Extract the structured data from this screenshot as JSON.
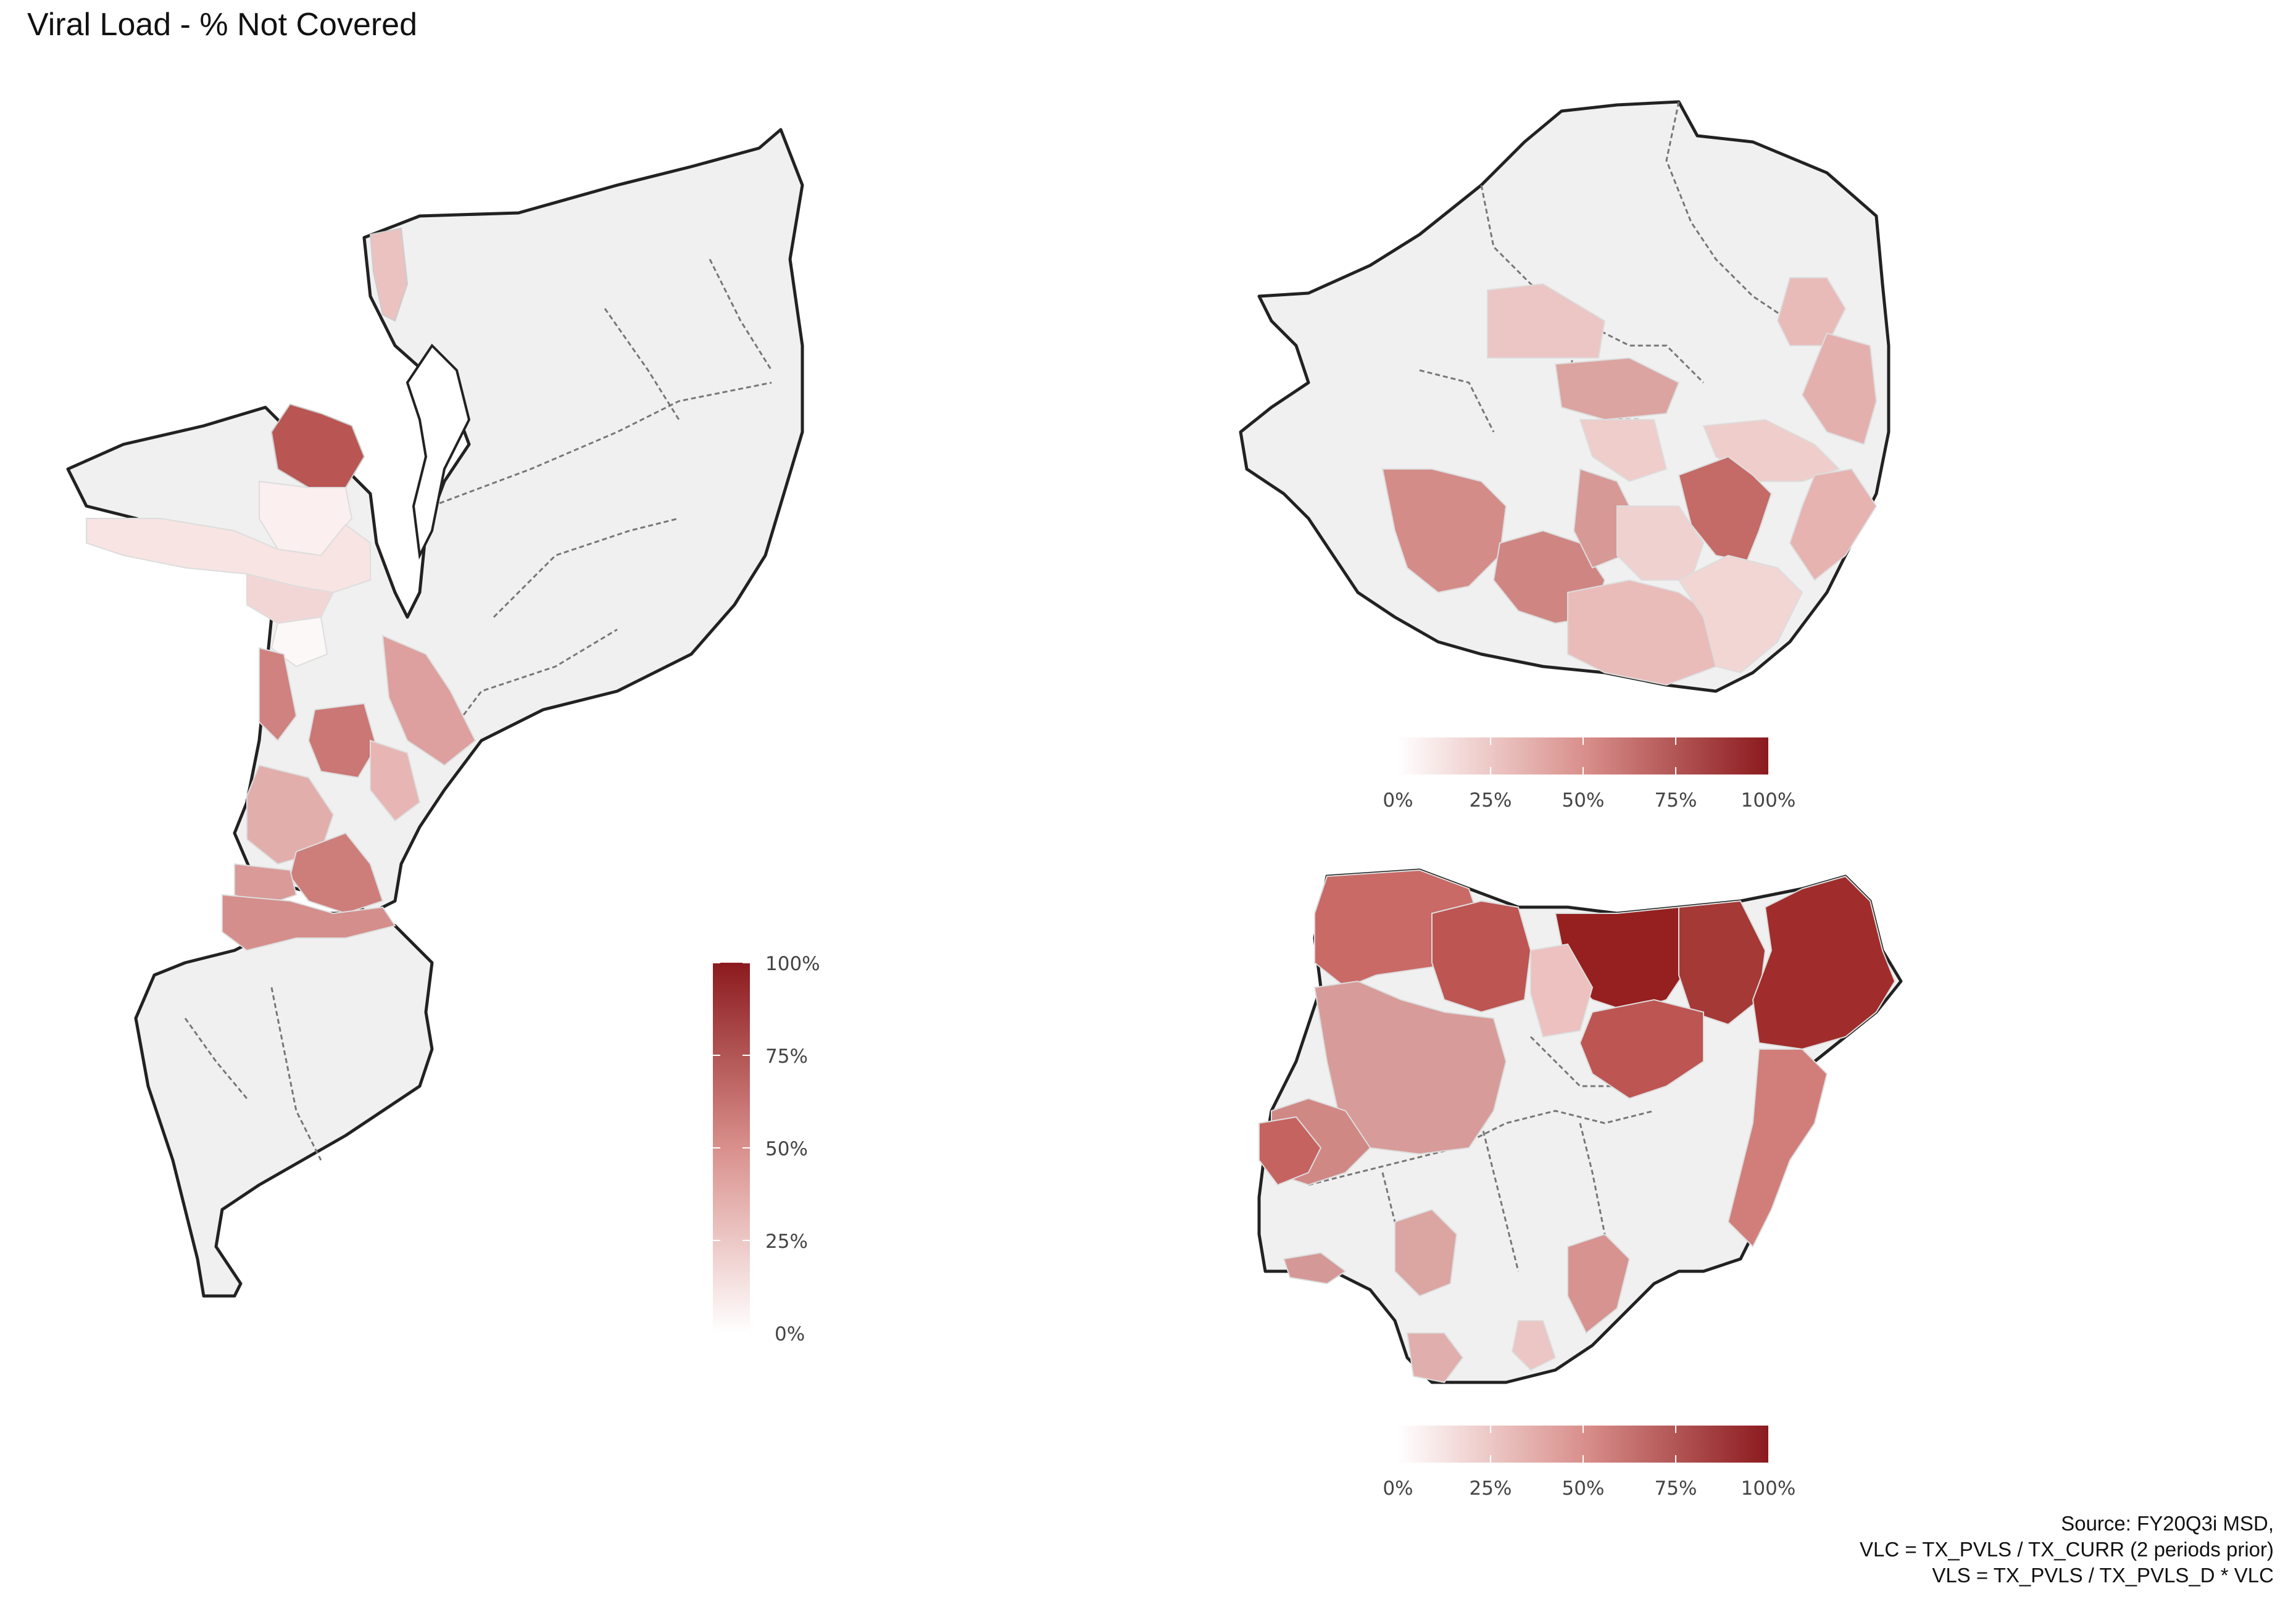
{
  "title": "Viral Load - % Not Covered",
  "colors": {
    "low": "#ffffff",
    "high": "#8b1a1e",
    "land": "#f0f0f0",
    "border": "#222222"
  },
  "legend": {
    "ticks": [
      "0%",
      "25%",
      "50%",
      "75%",
      "100%"
    ],
    "range": [
      0,
      100
    ]
  },
  "maps": [
    {
      "id": "mozambique",
      "regions": [
        {
          "name": "north-west-dark",
          "value": 70
        },
        {
          "name": "niassa-center",
          "value": 8
        },
        {
          "name": "niassa-south",
          "value": 18
        },
        {
          "name": "tete-band",
          "value": 12
        },
        {
          "name": "manica-north",
          "value": 5
        },
        {
          "name": "manica-strip",
          "value": 45
        },
        {
          "name": "sofala-mid",
          "value": 52
        },
        {
          "name": "sofala-east",
          "value": 38
        },
        {
          "name": "zambezia-east",
          "value": 28
        },
        {
          "name": "inhambane-a",
          "value": 30
        },
        {
          "name": "inhambane-b",
          "value": 48
        },
        {
          "name": "gaza-band",
          "value": 40
        },
        {
          "name": "gaza-south",
          "value": 45
        },
        {
          "name": "north-tip",
          "value": 22
        }
      ]
    },
    {
      "id": "zimbabwe",
      "regions": [
        {
          "name": "matabeleland-north-a",
          "value": 22
        },
        {
          "name": "midlands-a",
          "value": 38
        },
        {
          "name": "midlands-b",
          "value": 25
        },
        {
          "name": "harare-east",
          "value": 30
        },
        {
          "name": "mashonaland-east",
          "value": 25
        },
        {
          "name": "manicaland-a",
          "value": 35
        },
        {
          "name": "masvingo-dark",
          "value": 60
        },
        {
          "name": "matabeleland-south-a",
          "value": 45
        },
        {
          "name": "matabeleland-south-b",
          "value": 52
        },
        {
          "name": "gwanda-a",
          "value": 48
        },
        {
          "name": "gwanda-b",
          "value": 28
        },
        {
          "name": "masvingo-south",
          "value": 30
        },
        {
          "name": "chiredzi",
          "value": 20
        },
        {
          "name": "east-border",
          "value": 32
        }
      ]
    },
    {
      "id": "nigeria",
      "regions": [
        {
          "name": "sokoto",
          "value": 60
        },
        {
          "name": "zamfara",
          "value": 68
        },
        {
          "name": "katsina-kano",
          "value": 88
        },
        {
          "name": "jigawa",
          "value": 80
        },
        {
          "name": "borno-yobe",
          "value": 84
        },
        {
          "name": "kaduna",
          "value": 28
        },
        {
          "name": "bauchi",
          "value": 68
        },
        {
          "name": "kebbi-niger",
          "value": 45
        },
        {
          "name": "kwara",
          "value": 50
        },
        {
          "name": "oyo-west",
          "value": 58
        },
        {
          "name": "adamawa-taraba",
          "value": 52
        },
        {
          "name": "ondo",
          "value": 40
        },
        {
          "name": "enugu",
          "value": 48
        },
        {
          "name": "delta",
          "value": 35
        },
        {
          "name": "rivers",
          "value": 28
        },
        {
          "name": "ogun",
          "value": 42
        }
      ]
    }
  ],
  "caption": [
    "Source: FY20Q3i MSD,",
    "VLC = TX_PVLS / TX_CURR (2 periods prior)",
    "VLS = TX_PVLS / TX_PVLS_D * VLC"
  ]
}
